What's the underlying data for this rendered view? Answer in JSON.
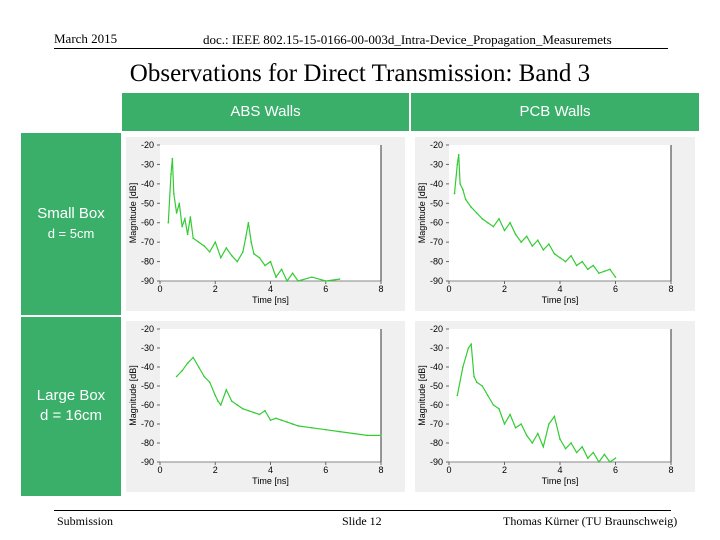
{
  "header": {
    "date": "March 2015",
    "doc_id": "doc.: IEEE 802.15-15-0166-00-003d_Intra-Device_Propagation_Measuremets"
  },
  "title": "Observations for Direct Transmission: Band 3",
  "table": {
    "col_headers": [
      "ABS Walls",
      "PCB Walls"
    ],
    "rows": [
      {
        "label_line1": "Small Box",
        "label_line2": "d = 5cm"
      },
      {
        "label_line1": "Large Box",
        "label_line2": "d = 16cm"
      }
    ]
  },
  "footer": {
    "left": "Submission",
    "center": "Slide 12",
    "right": "Thomas Kürner (TU Braunschweig)"
  },
  "colors": {
    "accent": "#3aaf6a",
    "trace": "#33cc33",
    "panel_bg": "#f0f0f0"
  },
  "chart_data": [
    {
      "type": "line",
      "id": "small-abs",
      "title": "Small Box, ABS Walls",
      "xlabel": "Time [ns]",
      "ylabel": "Magnitude [dB]",
      "xlim": [
        0,
        8
      ],
      "ylim": [
        -90,
        -20
      ],
      "xticks": [
        0,
        2,
        4,
        6,
        8
      ],
      "yticks": [
        -20,
        -30,
        -40,
        -50,
        -60,
        -70,
        -80,
        -90
      ],
      "series": [
        {
          "name": "Magnitude",
          "x": [
            0.3,
            0.4,
            0.45,
            0.5,
            0.6,
            0.7,
            0.8,
            0.9,
            1.0,
            1.1,
            1.2,
            1.4,
            1.6,
            1.8,
            2.0,
            2.2,
            2.4,
            2.6,
            2.8,
            3.0,
            3.1,
            3.2,
            3.3,
            3.4,
            3.6,
            3.8,
            4.0,
            4.2,
            4.4,
            4.6,
            4.8,
            5.0,
            5.5,
            6.0,
            6.5
          ],
          "y": [
            -60,
            -35,
            -27,
            -45,
            -55,
            -50,
            -62,
            -58,
            -66,
            -57,
            -68,
            -70,
            -72,
            -75,
            -70,
            -78,
            -73,
            -77,
            -80,
            -75,
            -68,
            -60,
            -70,
            -76,
            -78,
            -82,
            -80,
            -88,
            -84,
            -90,
            -86,
            -90,
            -88,
            -90,
            -89
          ]
        }
      ]
    },
    {
      "type": "line",
      "id": "small-pcb",
      "title": "Small Box, PCB Walls",
      "xlabel": "Time [ns]",
      "ylabel": "Magnitude [dB]",
      "xlim": [
        0,
        8
      ],
      "ylim": [
        -90,
        -20
      ],
      "xticks": [
        0,
        2,
        4,
        6,
        8
      ],
      "yticks": [
        -20,
        -30,
        -40,
        -50,
        -60,
        -70,
        -80,
        -90
      ],
      "series": [
        {
          "name": "Magnitude",
          "x": [
            0.2,
            0.3,
            0.35,
            0.4,
            0.5,
            0.6,
            0.8,
            1.0,
            1.2,
            1.4,
            1.6,
            1.8,
            2.0,
            2.2,
            2.4,
            2.6,
            2.8,
            3.0,
            3.2,
            3.4,
            3.6,
            3.8,
            4.0,
            4.2,
            4.4,
            4.6,
            4.8,
            5.0,
            5.2,
            5.4,
            5.6,
            5.8,
            6.0
          ],
          "y": [
            -45,
            -30,
            -25,
            -40,
            -43,
            -48,
            -52,
            -55,
            -58,
            -60,
            -62,
            -58,
            -64,
            -60,
            -66,
            -70,
            -67,
            -72,
            -69,
            -74,
            -71,
            -76,
            -78,
            -80,
            -77,
            -82,
            -80,
            -84,
            -82,
            -86,
            -85,
            -84,
            -88
          ]
        }
      ]
    },
    {
      "type": "line",
      "id": "large-abs",
      "title": "Large Box, ABS Walls",
      "xlabel": "Time [ns]",
      "ylabel": "Magnitude [dB]",
      "xlim": [
        0,
        8
      ],
      "ylim": [
        -90,
        -20
      ],
      "xticks": [
        0,
        2,
        4,
        6,
        8
      ],
      "yticks": [
        -20,
        -30,
        -40,
        -50,
        -60,
        -70,
        -80,
        -90
      ],
      "series": [
        {
          "name": "Magnitude",
          "x": [
            0.6,
            0.8,
            1.0,
            1.2,
            1.4,
            1.6,
            1.8,
            2.0,
            2.1,
            2.2,
            2.4,
            2.6,
            2.8,
            3.0,
            3.2,
            3.4,
            3.6,
            3.8,
            4.0,
            4.2,
            4.4,
            4.6,
            4.8,
            5.0,
            5.5,
            6.0,
            6.5,
            7.0,
            7.5,
            8.0
          ],
          "y": [
            -45,
            -42,
            -38,
            -35,
            -40,
            -45,
            -48,
            -55,
            -58,
            -60,
            -52,
            -58,
            -60,
            -62,
            -63,
            -64,
            -65,
            -63,
            -68,
            -67,
            -68,
            -69,
            -70,
            -71,
            -72,
            -73,
            -74,
            -75,
            -76,
            -76
          ]
        }
      ]
    },
    {
      "type": "line",
      "id": "large-pcb",
      "title": "Large Box, PCB Walls",
      "xlabel": "Time [ns]",
      "ylabel": "Magnitude [dB]",
      "xlim": [
        0,
        8
      ],
      "ylim": [
        -90,
        -20
      ],
      "xticks": [
        0,
        2,
        4,
        6,
        8
      ],
      "yticks": [
        -20,
        -30,
        -40,
        -50,
        -60,
        -70,
        -80,
        -90
      ],
      "series": [
        {
          "name": "Magnitude",
          "x": [
            0.3,
            0.5,
            0.7,
            0.8,
            0.9,
            1.0,
            1.2,
            1.4,
            1.6,
            1.8,
            2.0,
            2.2,
            2.4,
            2.6,
            2.8,
            3.0,
            3.2,
            3.4,
            3.6,
            3.8,
            4.0,
            4.2,
            4.4,
            4.6,
            4.8,
            5.0,
            5.2,
            5.4,
            5.6,
            5.8,
            6.0
          ],
          "y": [
            -55,
            -40,
            -30,
            -28,
            -45,
            -48,
            -50,
            -55,
            -60,
            -62,
            -70,
            -65,
            -72,
            -70,
            -76,
            -80,
            -75,
            -82,
            -70,
            -66,
            -78,
            -83,
            -80,
            -85,
            -82,
            -88,
            -85,
            -90,
            -86,
            -90,
            -88
          ]
        }
      ]
    }
  ]
}
